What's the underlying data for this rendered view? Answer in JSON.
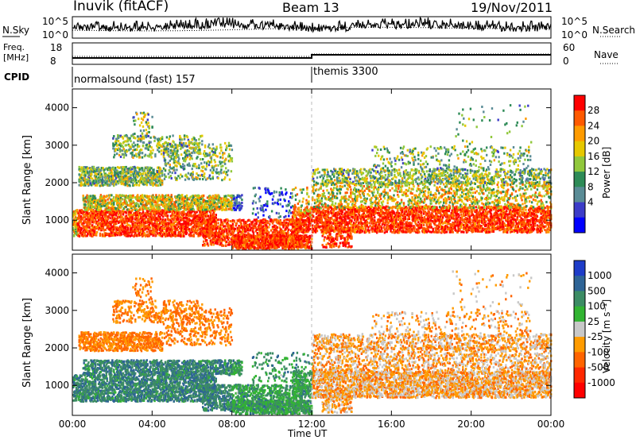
{
  "header": {
    "radar": "Inuvik (fitACF)",
    "beam": "Beam 13",
    "date": "19/Nov/2011"
  },
  "top_panels": {
    "nsky_label": "N.Sky",
    "nsky_ticks": [
      "10^5",
      "10^0"
    ],
    "nsearch_label": "N.Search",
    "nsearch_ticks": [
      "10^5",
      "10^0"
    ],
    "freq_label": "Freq.",
    "freq_unit": "[MHz]",
    "freq_ticks": [
      "18",
      "8"
    ],
    "nave_label": "Nave",
    "nave_ticks": [
      "60",
      "0"
    ],
    "cpid_label": "CPID",
    "cpid_segments": [
      {
        "name": "normalsound (fast) 157",
        "start_hour": 0
      },
      {
        "name": "themis 3300",
        "start_hour": 12
      }
    ]
  },
  "chart_data": [
    {
      "type": "heatmap",
      "title": "",
      "xlabel": "Time UT",
      "ylabel": "Slant Range [km]",
      "x_ticks": [
        "00:00",
        "04:00",
        "08:00",
        "12:00",
        "16:00",
        "20:00",
        "00:00"
      ],
      "xlim_hours": [
        0,
        24
      ],
      "y_ticks": [
        1000,
        2000,
        3000,
        4000
      ],
      "ylim": [
        200,
        4500
      ],
      "colorbar": {
        "label": "Power [dB]",
        "ticks": [
          "28",
          "24",
          "20",
          "16",
          "12",
          "8",
          "4"
        ],
        "colors": [
          "#ff0000",
          "#ff5a00",
          "#ff9b00",
          "#e6c800",
          "#91c83c",
          "#2e8b57",
          "#5a8c96",
          "#3c3cc8",
          "#0000ff"
        ]
      }
    },
    {
      "type": "heatmap",
      "title": "",
      "xlabel": "Time UT",
      "ylabel": "Slant Range [km]",
      "x_ticks": [
        "00:00",
        "04:00",
        "08:00",
        "12:00",
        "16:00",
        "20:00",
        "00:00"
      ],
      "xlim_hours": [
        0,
        24
      ],
      "y_ticks": [
        1000,
        2000,
        3000,
        4000
      ],
      "ylim": [
        200,
        4500
      ],
      "colorbar": {
        "label": "Velocity [m s⁻¹]",
        "ticks": [
          "1000",
          "500",
          "100",
          "25",
          "-25",
          "-100",
          "-500",
          "-1000"
        ],
        "colors": [
          "#1e3cc8",
          "#2e6496",
          "#3c8c64",
          "#32b432",
          "#c8c8c8",
          "#ff9b00",
          "#ff6400",
          "#ff2800",
          "#ff0000"
        ]
      }
    }
  ]
}
